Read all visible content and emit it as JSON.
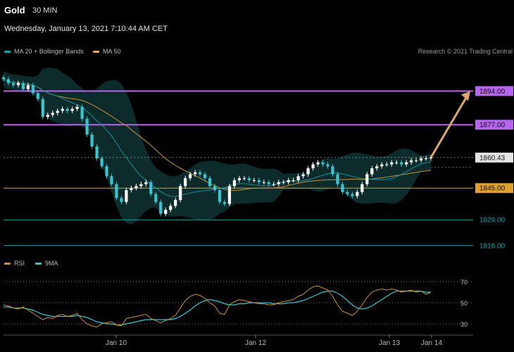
{
  "header": {
    "title": "Gold",
    "timeframe": "30 MIN",
    "datetime": "Wednesday, January 13, 2021 7:10:44 AM CET"
  },
  "legend_main": [
    {
      "label": "MA 20 + Bollinger Bands",
      "color": "#1aa3ad"
    },
    {
      "label": "MA 50",
      "color": "#e0a860"
    }
  ],
  "credit": "Research © 2021 Trading Central",
  "legend_rsi": [
    {
      "label": "RSI",
      "color": "#c8913a"
    },
    {
      "label": "9MA",
      "color": "#37c6cf"
    }
  ],
  "chart_data": {
    "type": "candlestick",
    "ylim": [
      1812,
      1908
    ],
    "x_ticks": [
      "Jan 10",
      "Jan 12",
      "Jan 13",
      "Jan 14"
    ],
    "last_price": 1860.43,
    "levels": [
      {
        "value": 1894.0,
        "label": "1894.00",
        "style": "resistance",
        "color": "#b565f0"
      },
      {
        "value": 1877.0,
        "label": "1877.00",
        "style": "resistance",
        "color": "#b565f0"
      },
      {
        "value": 1860.43,
        "label": "1860.43",
        "style": "last",
        "color": "#cccccc"
      },
      {
        "value": 1845.0,
        "label": "1845.00",
        "style": "pivot",
        "color": "#e0a030"
      },
      {
        "value": 1829.0,
        "label": "1829.00",
        "style": "support",
        "color": "#1aa3ad"
      },
      {
        "value": 1816.0,
        "label": "1816.00",
        "style": "support",
        "color": "#1aa3ad"
      }
    ],
    "target_arrow": {
      "from": 1860.43,
      "to": 1894.0
    },
    "close": [
      1900,
      1898,
      1897,
      1898,
      1895,
      1897,
      1893,
      1890,
      1881,
      1882,
      1883,
      1884,
      1885,
      1884,
      1885,
      1886,
      1880,
      1872,
      1866,
      1860,
      1856,
      1851,
      1847,
      1840,
      1838,
      1844,
      1845,
      1846,
      1847,
      1848,
      1842,
      1838,
      1832,
      1834,
      1836,
      1839,
      1846,
      1850,
      1852,
      1853,
      1852,
      1850,
      1846,
      1844,
      1838,
      1837,
      1846,
      1849,
      1850,
      1850,
      1849,
      1849,
      1848,
      1848,
      1847,
      1847,
      1848,
      1848,
      1849,
      1849,
      1851,
      1852,
      1855,
      1857,
      1858,
      1857,
      1856,
      1852,
      1847,
      1843,
      1842,
      1841,
      1843,
      1847,
      1852,
      1855,
      1856,
      1857,
      1857,
      1858,
      1858,
      1857,
      1858,
      1859,
      1859,
      1860,
      1860,
      1860.43
    ],
    "rsi": [
      48,
      47,
      45,
      44,
      46,
      43,
      40,
      37,
      34,
      36,
      35,
      38,
      39,
      37,
      38,
      40,
      34,
      30,
      28,
      27,
      30,
      31,
      32,
      29,
      28,
      35,
      36,
      37,
      38,
      39,
      35,
      33,
      31,
      33,
      35,
      38,
      45,
      52,
      56,
      58,
      57,
      54,
      50,
      47,
      40,
      39,
      48,
      51,
      53,
      52,
      51,
      50,
      49,
      49,
      48,
      48,
      50,
      51,
      52,
      53,
      56,
      58,
      62,
      65,
      66,
      64,
      62,
      56,
      48,
      42,
      40,
      38,
      42,
      48,
      55,
      60,
      62,
      63,
      62,
      63,
      62,
      60,
      61,
      62,
      60,
      61,
      58,
      60
    ],
    "rsi_ma": [
      46,
      46,
      45,
      45,
      45,
      44,
      43,
      41,
      39,
      38,
      37,
      37,
      37,
      37,
      37,
      38,
      37,
      36,
      34,
      32,
      31,
      30,
      30,
      29,
      29,
      30,
      31,
      32,
      33,
      34,
      34,
      34,
      34,
      34,
      34,
      35,
      37,
      40,
      43,
      47,
      50,
      52,
      53,
      52,
      51,
      49,
      48,
      48,
      49,
      49,
      50,
      50,
      50,
      50,
      50,
      49,
      49,
      49,
      50,
      50,
      51,
      52,
      54,
      56,
      58,
      60,
      61,
      61,
      59,
      56,
      52,
      48,
      45,
      44,
      45,
      47,
      50,
      53,
      56,
      59,
      61,
      61,
      61,
      61,
      61,
      61,
      60,
      60
    ],
    "rsi_levels": [
      70,
      50,
      30
    ],
    "rsi_ylim": [
      20,
      80
    ]
  }
}
